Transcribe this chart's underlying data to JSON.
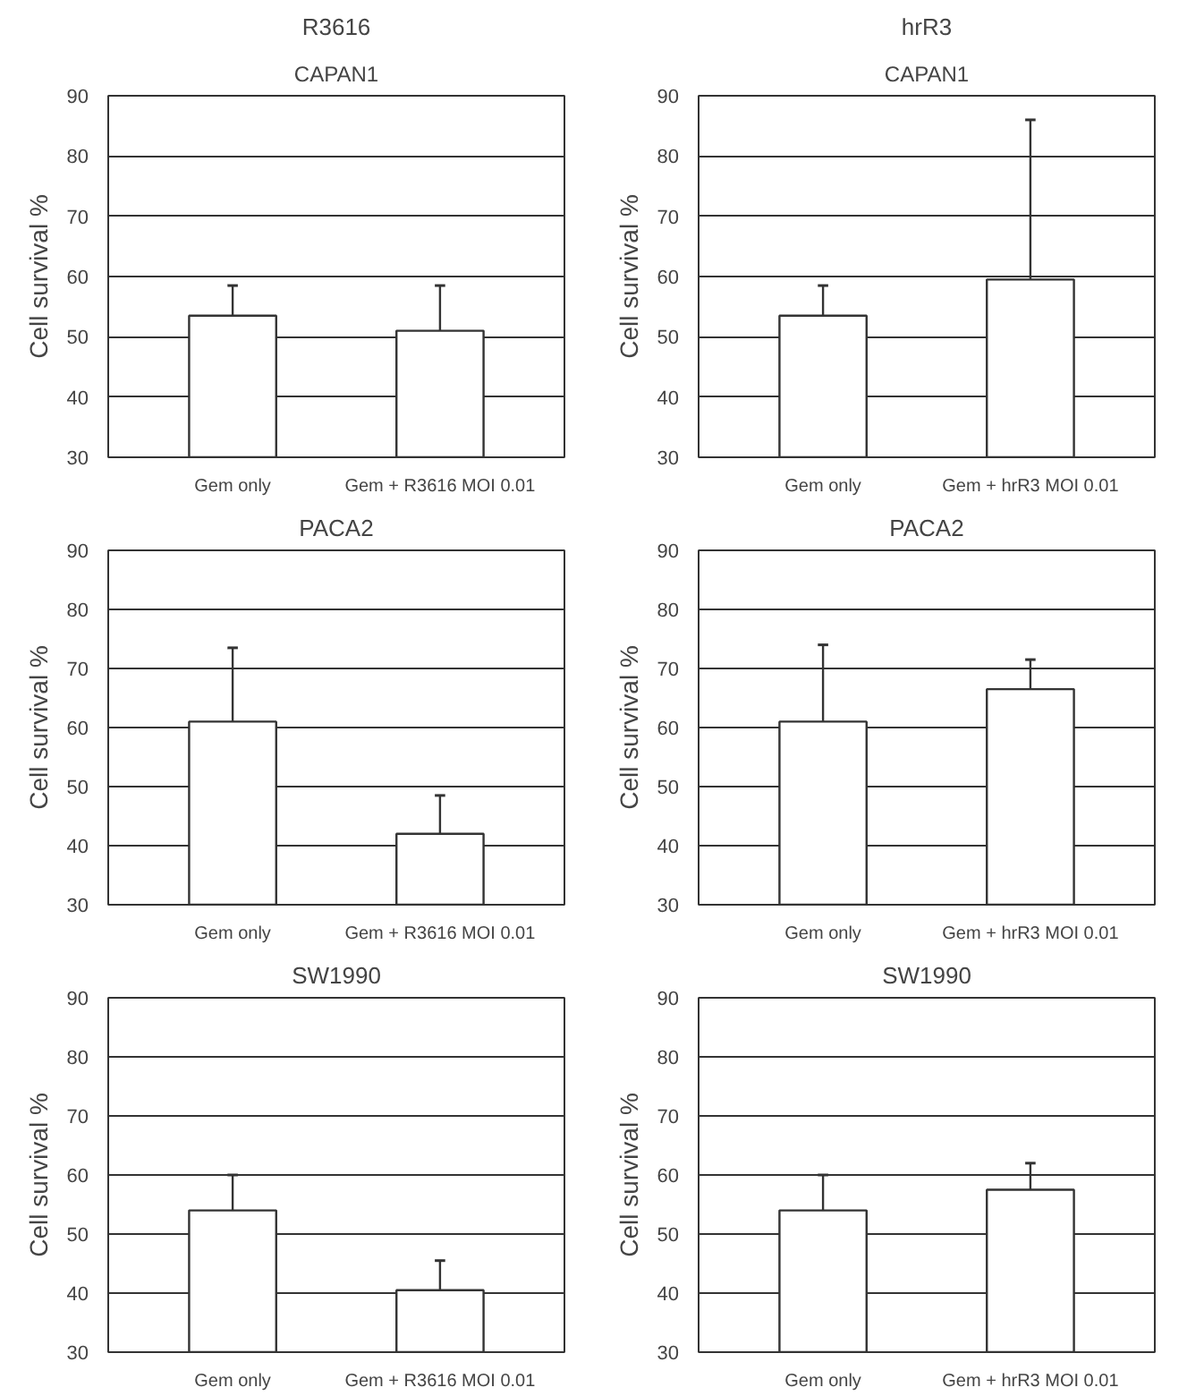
{
  "chart_data": [
    {
      "type": "bar",
      "title": "R3616",
      "subtitle": "CAPAN1",
      "ylabel": "Cell survival %",
      "categories": [
        "Gem only",
        "Gem + R3616 MOI 0.01"
      ],
      "values": [
        53.5,
        51
      ],
      "errors": [
        [
          53.5,
          58.5
        ],
        [
          51,
          58.5
        ]
      ],
      "color": "#ffffff",
      "ylim": [
        30,
        90
      ],
      "yticks": [
        30,
        40,
        50,
        60,
        70,
        80,
        90
      ],
      "grid": "y"
    },
    {
      "type": "bar",
      "title": "hrR3",
      "subtitle": "CAPAN1",
      "ylabel": "Cell survival %",
      "categories": [
        "Gem only",
        "Gem + hrR3 MOI 0.01"
      ],
      "values": [
        53.5,
        59.5
      ],
      "errors": [
        [
          53.5,
          58.5
        ],
        [
          59.5,
          86
        ]
      ],
      "color": "#ffffff",
      "ylim": [
        30,
        90
      ],
      "yticks": [
        30,
        40,
        50,
        60,
        70,
        80,
        90
      ],
      "grid": "y"
    },
    {
      "type": "bar",
      "title": "PACA2",
      "ylabel": "Cell survival %",
      "categories": [
        "Gem only",
        "Gem + R3616 MOI 0.01"
      ],
      "values": [
        61,
        42
      ],
      "errors": [
        [
          61,
          73.5
        ],
        [
          42,
          48.5
        ]
      ],
      "color": "#ffffff",
      "ylim": [
        30,
        90
      ],
      "yticks": [
        30,
        40,
        50,
        60,
        70,
        80,
        90
      ],
      "grid": "y"
    },
    {
      "type": "bar",
      "title": "PACA2",
      "ylabel": "Cell survival %",
      "categories": [
        "Gem only",
        "Gem + hrR3 MOI 0.01"
      ],
      "values": [
        61,
        66.5
      ],
      "errors": [
        [
          61,
          74
        ],
        [
          66.5,
          71.5
        ]
      ],
      "color": "#ffffff",
      "ylim": [
        30,
        90
      ],
      "yticks": [
        30,
        40,
        50,
        60,
        70,
        80,
        90
      ],
      "grid": "y"
    },
    {
      "type": "bar",
      "title": "SW1990",
      "ylabel": "Cell survival %",
      "categories": [
        "Gem only",
        "Gem + R3616 MOI 0.01"
      ],
      "values": [
        54,
        40.5
      ],
      "errors": [
        [
          54,
          60
        ],
        [
          40.5,
          45.5
        ]
      ],
      "color": "#ffffff",
      "ylim": [
        30,
        90
      ],
      "yticks": [
        30,
        40,
        50,
        60,
        70,
        80,
        90
      ],
      "grid": "y"
    },
    {
      "type": "bar",
      "title": "SW1990",
      "ylabel": "Cell survival %",
      "categories": [
        "Gem only",
        "Gem + hrR3 MOI 0.01"
      ],
      "values": [
        54,
        57.5
      ],
      "errors": [
        [
          54,
          60
        ],
        [
          57.5,
          62
        ]
      ],
      "color": "#ffffff",
      "ylim": [
        30,
        90
      ],
      "yticks": [
        30,
        40,
        50,
        60,
        70,
        80,
        90
      ],
      "grid": "y"
    }
  ]
}
